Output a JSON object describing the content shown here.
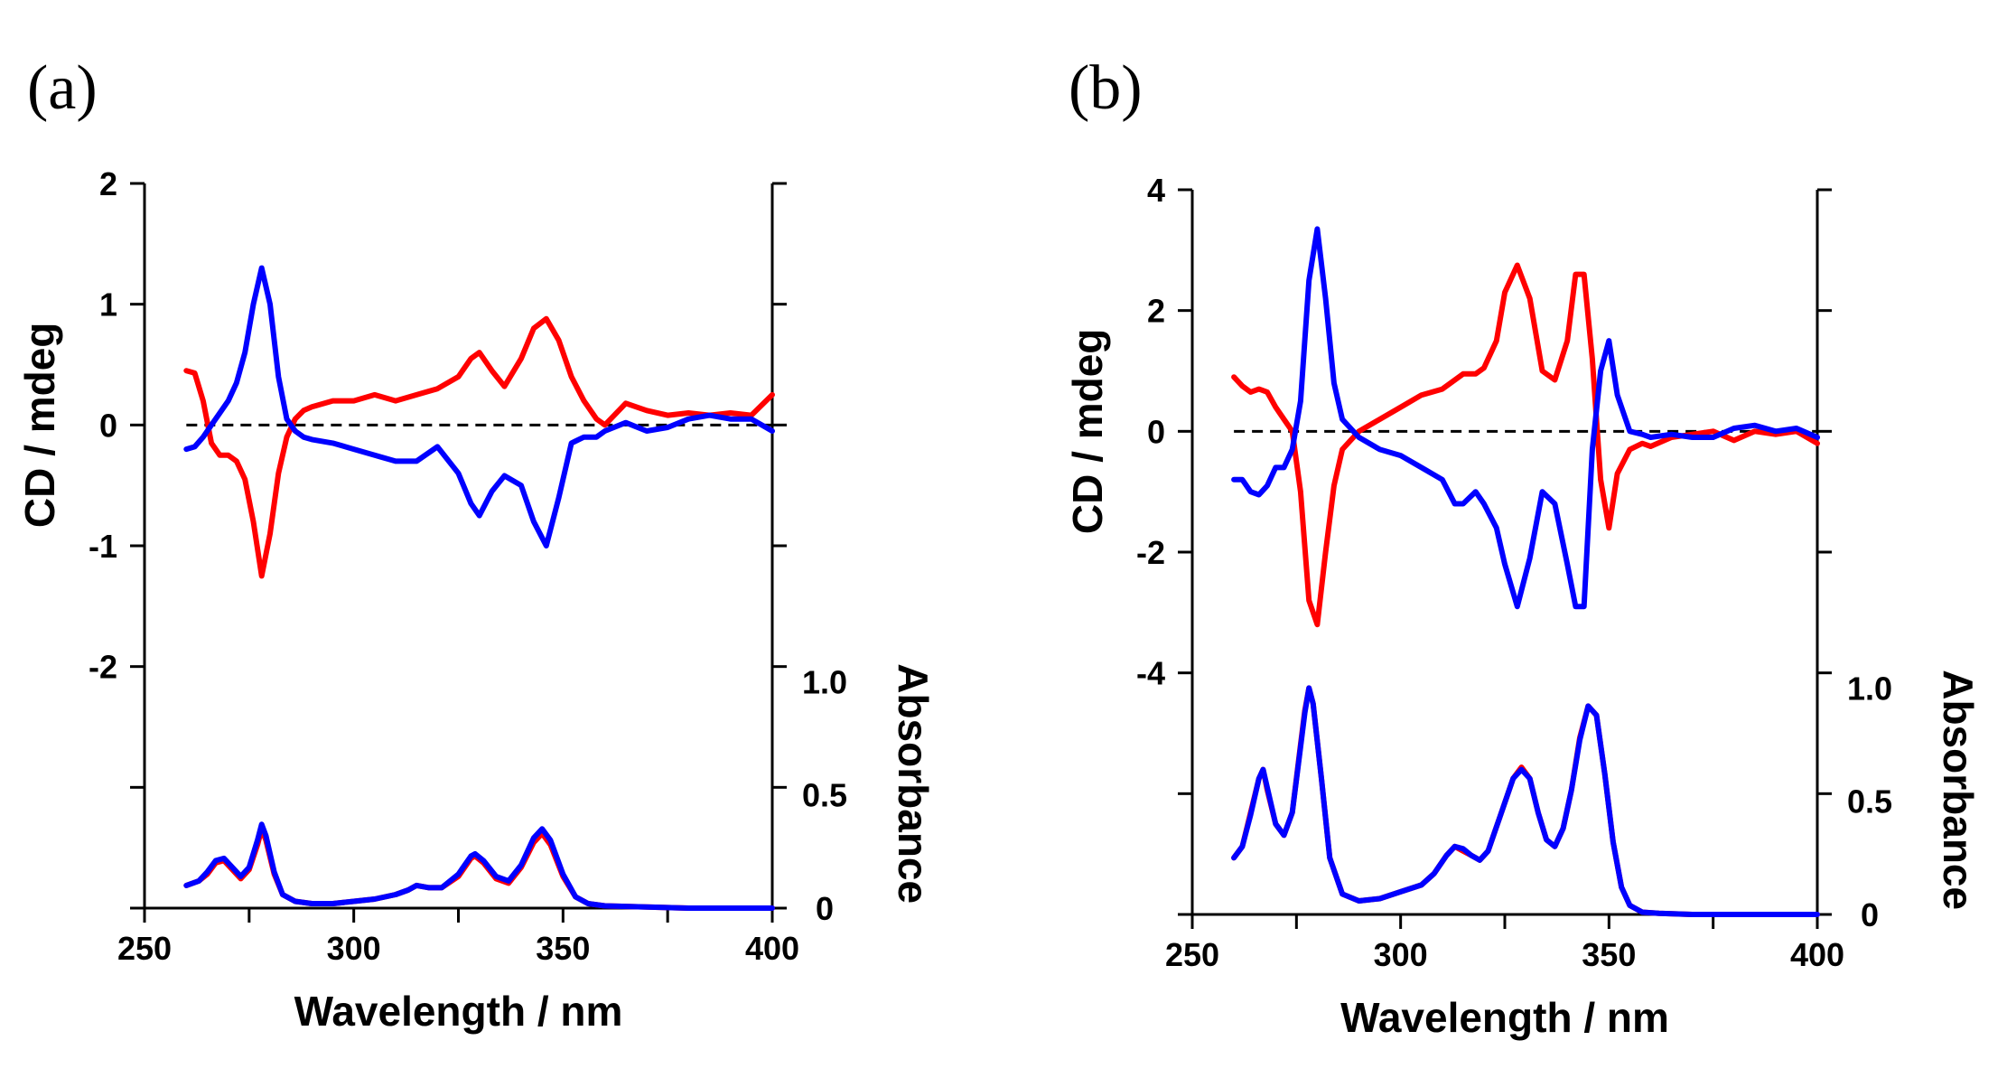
{
  "chart_data": [
    {
      "panel_label": "(a)",
      "type": "line",
      "xlabel": "Wavelength / nm",
      "ylabel": "CD / mdeg",
      "y2label": "Absorbance",
      "xlim": [
        250,
        400
      ],
      "xticks": [
        "250",
        "300",
        "350",
        "400"
      ],
      "ylim": [
        -4,
        2
      ],
      "yticks": [
        "2",
        "1",
        "0",
        "-1",
        "-2"
      ],
      "ylim_right": [
        0,
        3.2
      ],
      "yticks_right": [
        "1.0",
        "0.5",
        "0"
      ],
      "colors": {
        "red": "#ff0000",
        "blue": "#0000ff"
      },
      "cd_series": [
        {
          "name": "CD red",
          "color": "#ff0000",
          "x": [
            260,
            262,
            264,
            266,
            268,
            270,
            272,
            274,
            276,
            278,
            280,
            282,
            284,
            286,
            288,
            290,
            295,
            300,
            305,
            310,
            315,
            320,
            325,
            328,
            330,
            333,
            336,
            340,
            343,
            346,
            349,
            352,
            355,
            358,
            360,
            365,
            370,
            375,
            380,
            385,
            390,
            395,
            400
          ],
          "y": [
            0.45,
            0.43,
            0.2,
            -0.15,
            -0.25,
            -0.25,
            -0.3,
            -0.45,
            -0.8,
            -1.25,
            -0.9,
            -0.4,
            -0.1,
            0.05,
            0.12,
            0.15,
            0.2,
            0.2,
            0.25,
            0.2,
            0.25,
            0.3,
            0.4,
            0.55,
            0.6,
            0.45,
            0.32,
            0.55,
            0.8,
            0.88,
            0.7,
            0.4,
            0.2,
            0.05,
            0.0,
            0.18,
            0.12,
            0.08,
            0.1,
            0.08,
            0.1,
            0.08,
            0.25
          ]
        },
        {
          "name": "CD blue",
          "color": "#0000ff",
          "x": [
            260,
            262,
            264,
            266,
            268,
            270,
            272,
            274,
            276,
            278,
            280,
            282,
            284,
            286,
            288,
            290,
            295,
            300,
            305,
            310,
            315,
            320,
            325,
            328,
            330,
            333,
            336,
            340,
            343,
            346,
            349,
            352,
            355,
            358,
            360,
            365,
            370,
            375,
            380,
            385,
            390,
            395,
            400
          ],
          "y": [
            -0.2,
            -0.18,
            -0.1,
            0.0,
            0.1,
            0.2,
            0.35,
            0.6,
            1.0,
            1.3,
            1.0,
            0.4,
            0.05,
            -0.05,
            -0.1,
            -0.12,
            -0.15,
            -0.2,
            -0.25,
            -0.3,
            -0.3,
            -0.18,
            -0.4,
            -0.65,
            -0.75,
            -0.55,
            -0.42,
            -0.5,
            -0.8,
            -1.0,
            -0.6,
            -0.15,
            -0.1,
            -0.1,
            -0.05,
            0.02,
            -0.05,
            -0.02,
            0.05,
            0.08,
            0.05,
            0.05,
            -0.05
          ]
        }
      ],
      "abs_series": [
        {
          "name": "Absorbance red",
          "color": "#ff0000",
          "x": [
            260,
            263,
            265,
            267,
            269,
            271,
            273,
            275,
            277,
            278,
            279,
            281,
            283,
            286,
            290,
            295,
            300,
            305,
            310,
            313,
            315,
            318,
            321,
            325,
            328,
            329,
            331,
            334,
            337,
            340,
            343,
            345,
            347,
            350,
            353,
            356,
            360,
            370,
            380,
            390,
            400
          ],
          "y": [
            0.1,
            0.12,
            0.15,
            0.2,
            0.21,
            0.17,
            0.13,
            0.17,
            0.28,
            0.35,
            0.3,
            0.15,
            0.06,
            0.03,
            0.02,
            0.02,
            0.03,
            0.04,
            0.06,
            0.08,
            0.1,
            0.09,
            0.09,
            0.14,
            0.22,
            0.23,
            0.2,
            0.13,
            0.11,
            0.18,
            0.29,
            0.33,
            0.28,
            0.14,
            0.05,
            0.02,
            0.01,
            0.005,
            0.0,
            0.0,
            0.0
          ]
        },
        {
          "name": "Absorbance blue",
          "color": "#0000ff",
          "x": [
            260,
            263,
            265,
            267,
            269,
            271,
            273,
            275,
            277,
            278,
            279,
            281,
            283,
            286,
            290,
            295,
            300,
            305,
            310,
            313,
            315,
            318,
            321,
            325,
            328,
            329,
            331,
            334,
            337,
            340,
            343,
            345,
            347,
            350,
            353,
            356,
            360,
            370,
            380,
            390,
            400
          ],
          "y": [
            0.1,
            0.12,
            0.16,
            0.21,
            0.22,
            0.18,
            0.14,
            0.18,
            0.3,
            0.37,
            0.32,
            0.16,
            0.06,
            0.03,
            0.02,
            0.02,
            0.03,
            0.04,
            0.06,
            0.08,
            0.1,
            0.09,
            0.09,
            0.15,
            0.23,
            0.24,
            0.21,
            0.14,
            0.12,
            0.19,
            0.31,
            0.35,
            0.3,
            0.15,
            0.05,
            0.02,
            0.01,
            0.005,
            0.0,
            0.0,
            0.0
          ]
        }
      ]
    },
    {
      "panel_label": "(b)",
      "type": "line",
      "xlabel": "Wavelength / nm",
      "ylabel": "CD / mdeg",
      "y2label": "Absorbance",
      "xlim": [
        250,
        400
      ],
      "xticks": [
        "250",
        "300",
        "350",
        "400"
      ],
      "ylim": [
        -8,
        4
      ],
      "yticks": [
        "4",
        "2",
        "0",
        "-2",
        "-4"
      ],
      "ylim_right": [
        0,
        3.2
      ],
      "yticks_right": [
        "1.0",
        "0.5",
        "0"
      ],
      "colors": {
        "red": "#ff0000",
        "blue": "#0000ff"
      },
      "cd_series": [
        {
          "name": "CD red",
          "color": "#ff0000",
          "x": [
            260,
            262,
            264,
            266,
            268,
            270,
            272,
            274,
            276,
            278,
            280,
            282,
            284,
            286,
            290,
            295,
            300,
            305,
            310,
            315,
            318,
            320,
            323,
            325,
            328,
            331,
            334,
            337,
            340,
            342,
            344,
            346,
            348,
            350,
            352,
            355,
            358,
            360,
            365,
            370,
            375,
            380,
            385,
            390,
            395,
            400
          ],
          "y": [
            0.9,
            0.75,
            0.65,
            0.7,
            0.65,
            0.4,
            0.2,
            0.0,
            -1.0,
            -2.8,
            -3.2,
            -2.0,
            -0.9,
            -0.3,
            0.0,
            0.2,
            0.4,
            0.6,
            0.7,
            0.95,
            0.95,
            1.05,
            1.5,
            2.3,
            2.75,
            2.2,
            1.0,
            0.85,
            1.5,
            2.6,
            2.6,
            1.2,
            -0.8,
            -1.6,
            -0.7,
            -0.3,
            -0.2,
            -0.25,
            -0.1,
            -0.05,
            0.0,
            -0.15,
            0.0,
            -0.05,
            0.0,
            -0.2
          ]
        },
        {
          "name": "CD blue",
          "color": "#0000ff",
          "x": [
            260,
            262,
            264,
            266,
            268,
            270,
            272,
            274,
            276,
            278,
            280,
            282,
            284,
            286,
            290,
            295,
            300,
            305,
            310,
            313,
            315,
            318,
            320,
            323,
            325,
            328,
            331,
            334,
            337,
            340,
            342,
            344,
            346,
            348,
            350,
            352,
            355,
            358,
            360,
            365,
            370,
            375,
            380,
            385,
            390,
            395,
            400
          ],
          "y": [
            -0.8,
            -0.8,
            -1.0,
            -1.05,
            -0.9,
            -0.6,
            -0.6,
            -0.3,
            0.5,
            2.5,
            3.35,
            2.2,
            0.8,
            0.2,
            -0.1,
            -0.3,
            -0.4,
            -0.6,
            -0.8,
            -1.2,
            -1.2,
            -1.0,
            -1.2,
            -1.6,
            -2.2,
            -2.9,
            -2.1,
            -1.0,
            -1.2,
            -2.2,
            -2.9,
            -2.9,
            -0.3,
            1.0,
            1.5,
            0.6,
            0.0,
            -0.05,
            -0.1,
            -0.05,
            -0.1,
            -0.1,
            0.05,
            0.1,
            0.0,
            0.05,
            -0.1
          ]
        }
      ],
      "abs_series": [
        {
          "name": "Absorbance red",
          "color": "#ff0000",
          "x": [
            260,
            262,
            264,
            266,
            267,
            268,
            270,
            272,
            274,
            276,
            277,
            278,
            279,
            281,
            283,
            286,
            290,
            295,
            300,
            305,
            308,
            311,
            313,
            315,
            317,
            319,
            321,
            324,
            327,
            329,
            331,
            333,
            335,
            337,
            339,
            341,
            343,
            345,
            347,
            349,
            351,
            353,
            355,
            358,
            362,
            370,
            380,
            390,
            400
          ],
          "y": [
            0.25,
            0.3,
            0.45,
            0.6,
            0.64,
            0.55,
            0.4,
            0.35,
            0.45,
            0.75,
            0.9,
            1.0,
            0.93,
            0.6,
            0.25,
            0.09,
            0.06,
            0.07,
            0.1,
            0.13,
            0.18,
            0.26,
            0.3,
            0.28,
            0.26,
            0.24,
            0.28,
            0.44,
            0.6,
            0.65,
            0.6,
            0.45,
            0.33,
            0.3,
            0.38,
            0.55,
            0.78,
            0.92,
            0.88,
            0.62,
            0.32,
            0.12,
            0.04,
            0.01,
            0.005,
            0.0,
            0.0,
            0.0,
            0.0
          ]
        },
        {
          "name": "Absorbance blue",
          "color": "#0000ff",
          "x": [
            260,
            262,
            264,
            266,
            267,
            268,
            270,
            272,
            274,
            276,
            277,
            278,
            279,
            281,
            283,
            286,
            290,
            295,
            300,
            305,
            308,
            311,
            313,
            315,
            317,
            319,
            321,
            324,
            327,
            329,
            331,
            333,
            335,
            337,
            339,
            341,
            343,
            345,
            347,
            349,
            351,
            353,
            355,
            358,
            362,
            370,
            380,
            390,
            400
          ],
          "y": [
            0.25,
            0.3,
            0.44,
            0.6,
            0.64,
            0.56,
            0.4,
            0.35,
            0.45,
            0.74,
            0.89,
            1.0,
            0.93,
            0.6,
            0.25,
            0.09,
            0.06,
            0.07,
            0.1,
            0.13,
            0.18,
            0.26,
            0.3,
            0.29,
            0.26,
            0.24,
            0.28,
            0.44,
            0.6,
            0.64,
            0.6,
            0.45,
            0.33,
            0.3,
            0.38,
            0.55,
            0.77,
            0.92,
            0.88,
            0.62,
            0.32,
            0.12,
            0.04,
            0.01,
            0.005,
            0.0,
            0.0,
            0.0,
            0.0
          ]
        }
      ]
    }
  ]
}
